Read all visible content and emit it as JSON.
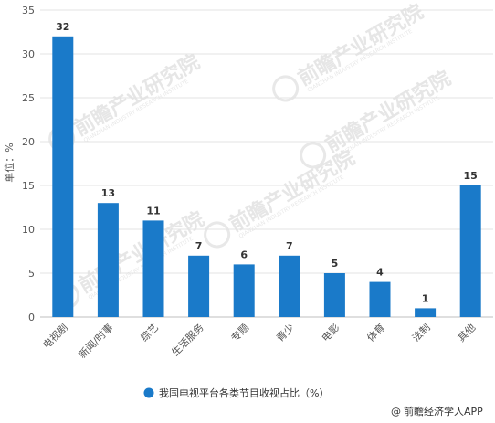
{
  "chart_data": {
    "type": "bar",
    "categories": [
      "电视剧",
      "新闻/时事",
      "综艺",
      "生活服务",
      "专题",
      "青少",
      "电影",
      "体育",
      "法制",
      "其他"
    ],
    "series": [
      {
        "name": "我国电视平台各类节目收视占比（%）",
        "values": [
          32,
          13,
          11,
          7,
          6,
          7,
          5,
          4,
          1,
          15
        ]
      }
    ],
    "ylabel": "单位：%",
    "ylim": [
      0,
      35
    ],
    "yticks": [
      0,
      5,
      10,
      15,
      20,
      25,
      30,
      35
    ],
    "grid": true,
    "legend_position": "bottom",
    "bar_color": "#1a7ac9"
  },
  "watermark": {
    "text": "前瞻产业研究院",
    "subtext": "QIANZHAN INDUSTRY RESEARCH INSTITUTE"
  },
  "source": {
    "symbol": "@",
    "text": "前瞻经济学人APP"
  }
}
